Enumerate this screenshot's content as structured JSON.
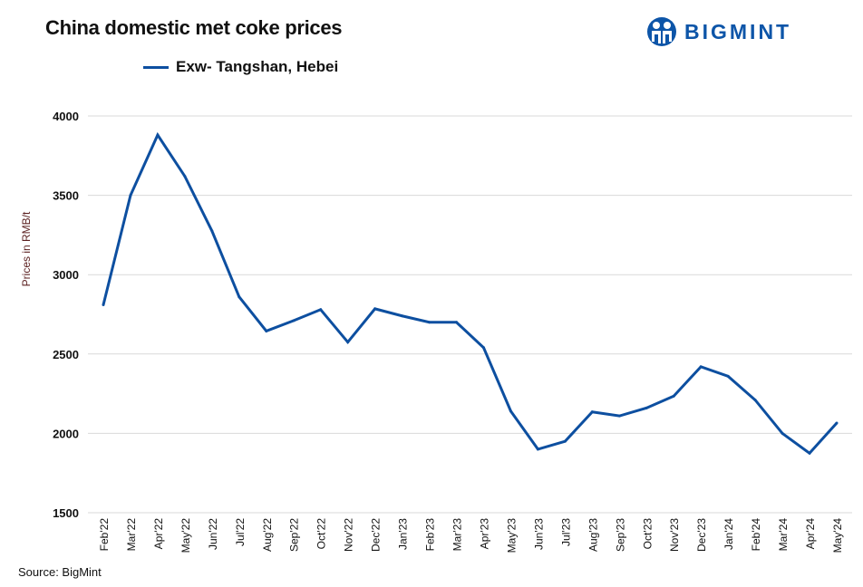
{
  "header": {
    "title": "China domestic met coke prices",
    "logo_text": "BIGMINT"
  },
  "footer": {
    "source": "Source: BigMint"
  },
  "colors": {
    "series": "#0d4fa0",
    "logo": "#0d55a8",
    "grid": "#d9d9d9"
  },
  "chart_data": {
    "type": "line",
    "title": "China domestic met coke prices",
    "xlabel": "",
    "ylabel": "Prices in RMB/t",
    "ylim": [
      1500,
      4000
    ],
    "yticks": [
      1500,
      2000,
      2500,
      3000,
      3500,
      4000
    ],
    "grid": true,
    "legend_position": "top",
    "categories": [
      "Feb'22",
      "Mar'22",
      "Apr'22",
      "May'22",
      "Jun'22",
      "Jul'22",
      "Aug'22",
      "Sep'22",
      "Oct'22",
      "Nov'22",
      "Dec'22",
      "Jan'23",
      "Feb'23",
      "Mar'23",
      "Apr'23",
      "May'23",
      "Jun'23",
      "Jul'23",
      "Aug'23",
      "Sep'23",
      "Oct'23",
      "Nov'23",
      "Dec'23",
      "Jan'24",
      "Feb'24",
      "Mar'24",
      "Apr'24",
      "May'24"
    ],
    "series": [
      {
        "name": "Exw- Tangshan, Hebei",
        "values": [
          2810,
          3500,
          3880,
          3620,
          3275,
          2860,
          2645,
          2710,
          2780,
          2575,
          2785,
          2740,
          2700,
          2700,
          2540,
          2140,
          1900,
          1950,
          2135,
          2110,
          2160,
          2235,
          2420,
          2360,
          2210,
          2000,
          1875,
          2065
        ]
      }
    ]
  }
}
